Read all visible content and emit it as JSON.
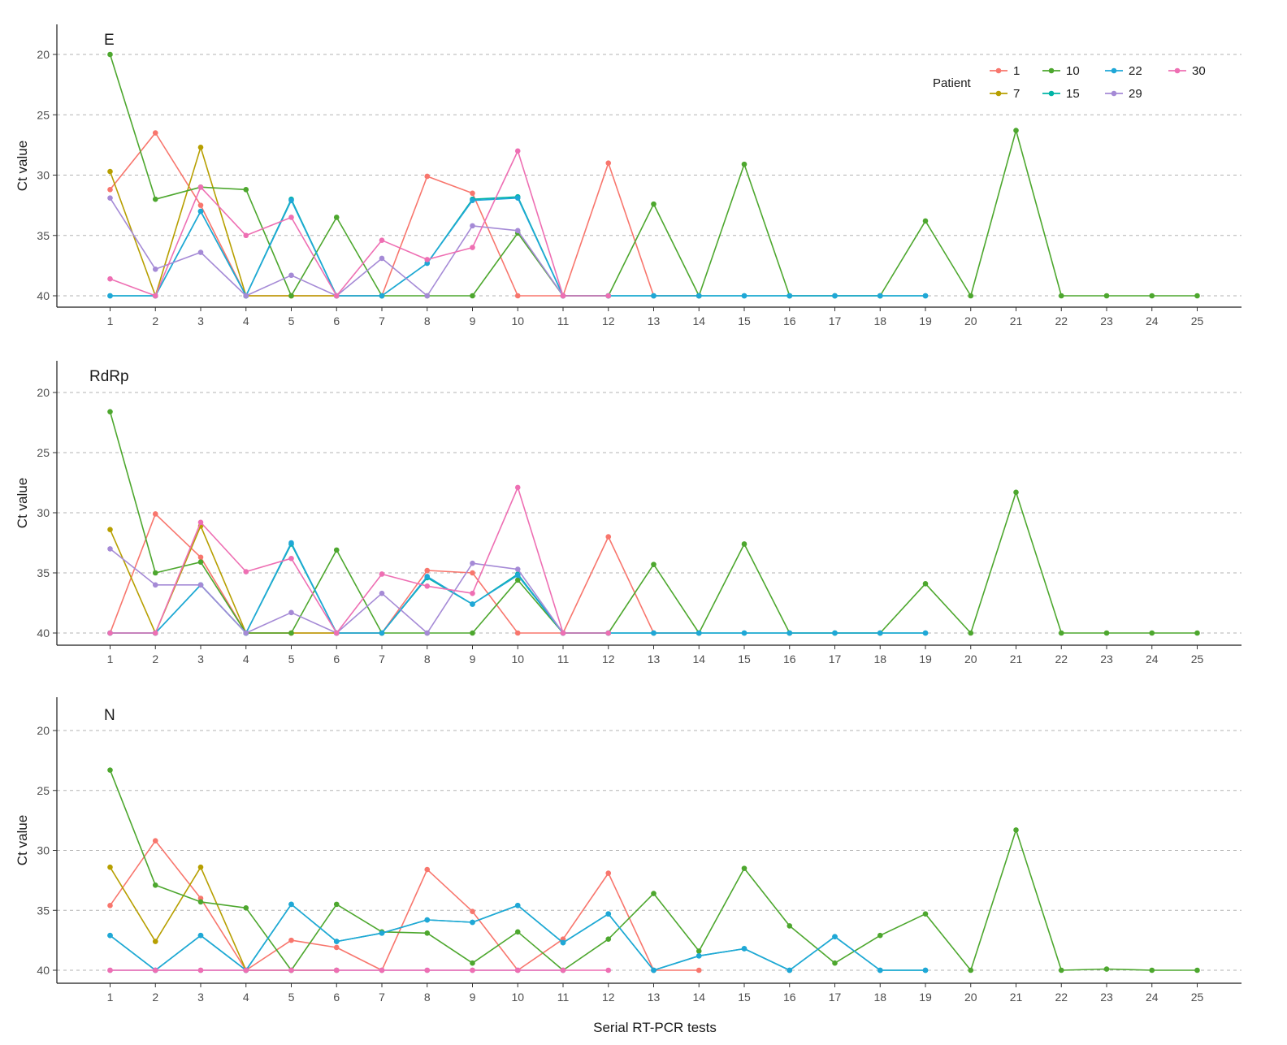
{
  "chart_data": {
    "type": "line",
    "xlabel": "Serial RT-PCR tests",
    "ylabel": "Ct value",
    "x": [
      1,
      2,
      3,
      4,
      5,
      6,
      7,
      8,
      9,
      10,
      11,
      12,
      13,
      14,
      15,
      16,
      17,
      18,
      19,
      20,
      21,
      22,
      23,
      24,
      25
    ],
    "ylim": [
      18,
      41
    ],
    "y_reversed": true,
    "yticks": [
      20,
      25,
      30,
      35,
      40
    ],
    "grid": "horizontal dashed",
    "legend": {
      "title": "Patient",
      "placement": "top-right, inside first panel",
      "entries": [
        {
          "name": "1",
          "color": "#F8766D"
        },
        {
          "name": "7",
          "color": "#B79F00"
        },
        {
          "name": "10",
          "color": "#4DA72E"
        },
        {
          "name": "15",
          "color": "#00B4A6"
        },
        {
          "name": "22",
          "color": "#1FA7D7"
        },
        {
          "name": "29",
          "color": "#A58AD6"
        },
        {
          "name": "30",
          "color": "#EE6FB3"
        }
      ]
    },
    "panels": [
      {
        "title": "E",
        "series": [
          {
            "name": "1",
            "color": "#F8766D",
            "values": [
              31.2,
              26.5,
              32.5,
              40,
              40,
              40,
              40,
              30.1,
              31.5,
              40,
              40,
              29,
              40,
              40
            ]
          },
          {
            "name": "7",
            "color": "#B79F00",
            "values": [
              29.7,
              40,
              27.7,
              40,
              40,
              40
            ]
          },
          {
            "name": "10",
            "color": "#4DA72E",
            "values": [
              20,
              32,
              31,
              31.2,
              40,
              33.5,
              40,
              40,
              40,
              34.8,
              40,
              40,
              32.4,
              40,
              29.1,
              40,
              40,
              40,
              33.8,
              40,
              26.3,
              40,
              40,
              40,
              40
            ]
          },
          {
            "name": "15",
            "color": "#00B4A6",
            "values": [
              40,
              40,
              33,
              40,
              32,
              40,
              40,
              37.3,
              32,
              31.8,
              40,
              40,
              40,
              40,
              40,
              40,
              40,
              40,
              40
            ]
          },
          {
            "name": "22",
            "color": "#1FA7D7",
            "values": [
              40,
              40,
              33,
              40,
              32.1,
              40,
              40,
              37.3,
              32.1,
              31.9,
              40,
              40,
              40,
              40,
              40,
              40,
              40,
              40,
              40
            ]
          },
          {
            "name": "29",
            "color": "#A58AD6",
            "values": [
              31.9,
              37.8,
              36.4,
              40,
              38.3,
              40,
              36.9,
              40,
              34.2,
              34.6,
              40
            ]
          },
          {
            "name": "30",
            "color": "#EE6FB3",
            "values": [
              38.6,
              40,
              31,
              35,
              33.5,
              40,
              35.4,
              37,
              36,
              28,
              40,
              40
            ]
          }
        ]
      },
      {
        "title": "RdRp",
        "series": [
          {
            "name": "1",
            "color": "#F8766D",
            "values": [
              40,
              30.1,
              33.7,
              40,
              40,
              40,
              40,
              34.8,
              35,
              40,
              40,
              32,
              40,
              40
            ]
          },
          {
            "name": "7",
            "color": "#B79F00",
            "values": [
              31.4,
              40,
              31.1,
              40,
              40,
              40
            ]
          },
          {
            "name": "10",
            "color": "#4DA72E",
            "values": [
              21.6,
              35,
              34.1,
              40,
              40,
              33.1,
              40,
              40,
              40,
              35.6,
              40,
              40,
              34.3,
              40,
              32.6,
              40,
              40,
              40,
              35.9,
              40,
              28.3,
              40,
              40,
              40,
              40
            ]
          },
          {
            "name": "15",
            "color": "#00B4A6",
            "values": [
              40,
              40,
              36,
              40,
              32.6,
              40,
              40,
              35.4,
              37.6,
              35.1,
              40,
              40,
              40,
              40,
              40,
              40,
              40,
              40,
              40
            ]
          },
          {
            "name": "22",
            "color": "#1FA7D7",
            "values": [
              40,
              40,
              36,
              40,
              32.5,
              40,
              40,
              35.3,
              37.6,
              35.2,
              40,
              40,
              40,
              40,
              40,
              40,
              40,
              40,
              40
            ]
          },
          {
            "name": "29",
            "color": "#A58AD6",
            "values": [
              33,
              36,
              36,
              40,
              38.3,
              40,
              36.7,
              40,
              34.2,
              34.7,
              40
            ]
          },
          {
            "name": "30",
            "color": "#EE6FB3",
            "values": [
              40,
              40,
              30.8,
              34.9,
              33.8,
              40,
              35.1,
              36.1,
              36.7,
              27.9,
              40,
              40
            ]
          }
        ]
      },
      {
        "title": "N",
        "series": [
          {
            "name": "1",
            "color": "#F8766D",
            "values": [
              34.6,
              29.2,
              34,
              40,
              37.5,
              38.1,
              40,
              31.6,
              35.1,
              40,
              37.4,
              31.9,
              40,
              40
            ]
          },
          {
            "name": "7",
            "color": "#B79F00",
            "values": [
              31.4,
              37.6,
              31.4,
              40,
              40,
              40
            ]
          },
          {
            "name": "10",
            "color": "#4DA72E",
            "values": [
              23.3,
              32.9,
              34.3,
              34.8,
              40,
              34.5,
              36.8,
              36.9,
              39.4,
              36.8,
              40,
              37.4,
              33.6,
              38.4,
              31.5,
              36.3,
              39.4,
              37.1,
              35.3,
              40,
              28.3,
              40,
              39.9,
              40,
              40
            ]
          },
          {
            "name": "15",
            "color": "#00B4A6",
            "values": [
              37.1,
              40,
              37.1,
              40,
              34.5,
              37.6,
              36.9,
              35.8,
              36,
              34.6,
              37.7,
              35.3,
              40,
              38.8,
              38.2,
              40,
              37.2,
              40,
              40
            ]
          },
          {
            "name": "22",
            "color": "#1FA7D7",
            "values": [
              37.1,
              40,
              37.1,
              40,
              34.5,
              37.6,
              36.9,
              35.8,
              36,
              34.6,
              37.7,
              35.3,
              40,
              38.8,
              38.2,
              40,
              37.2,
              40,
              40
            ]
          },
          {
            "name": "29",
            "color": "#A58AD6",
            "values": [
              40,
              40,
              40,
              40,
              40,
              40,
              40,
              40,
              40,
              40,
              40
            ]
          },
          {
            "name": "30",
            "color": "#EE6FB3",
            "values": [
              40,
              40,
              40,
              40,
              40,
              40,
              40,
              40,
              40,
              40,
              40,
              40
            ]
          }
        ]
      }
    ]
  }
}
